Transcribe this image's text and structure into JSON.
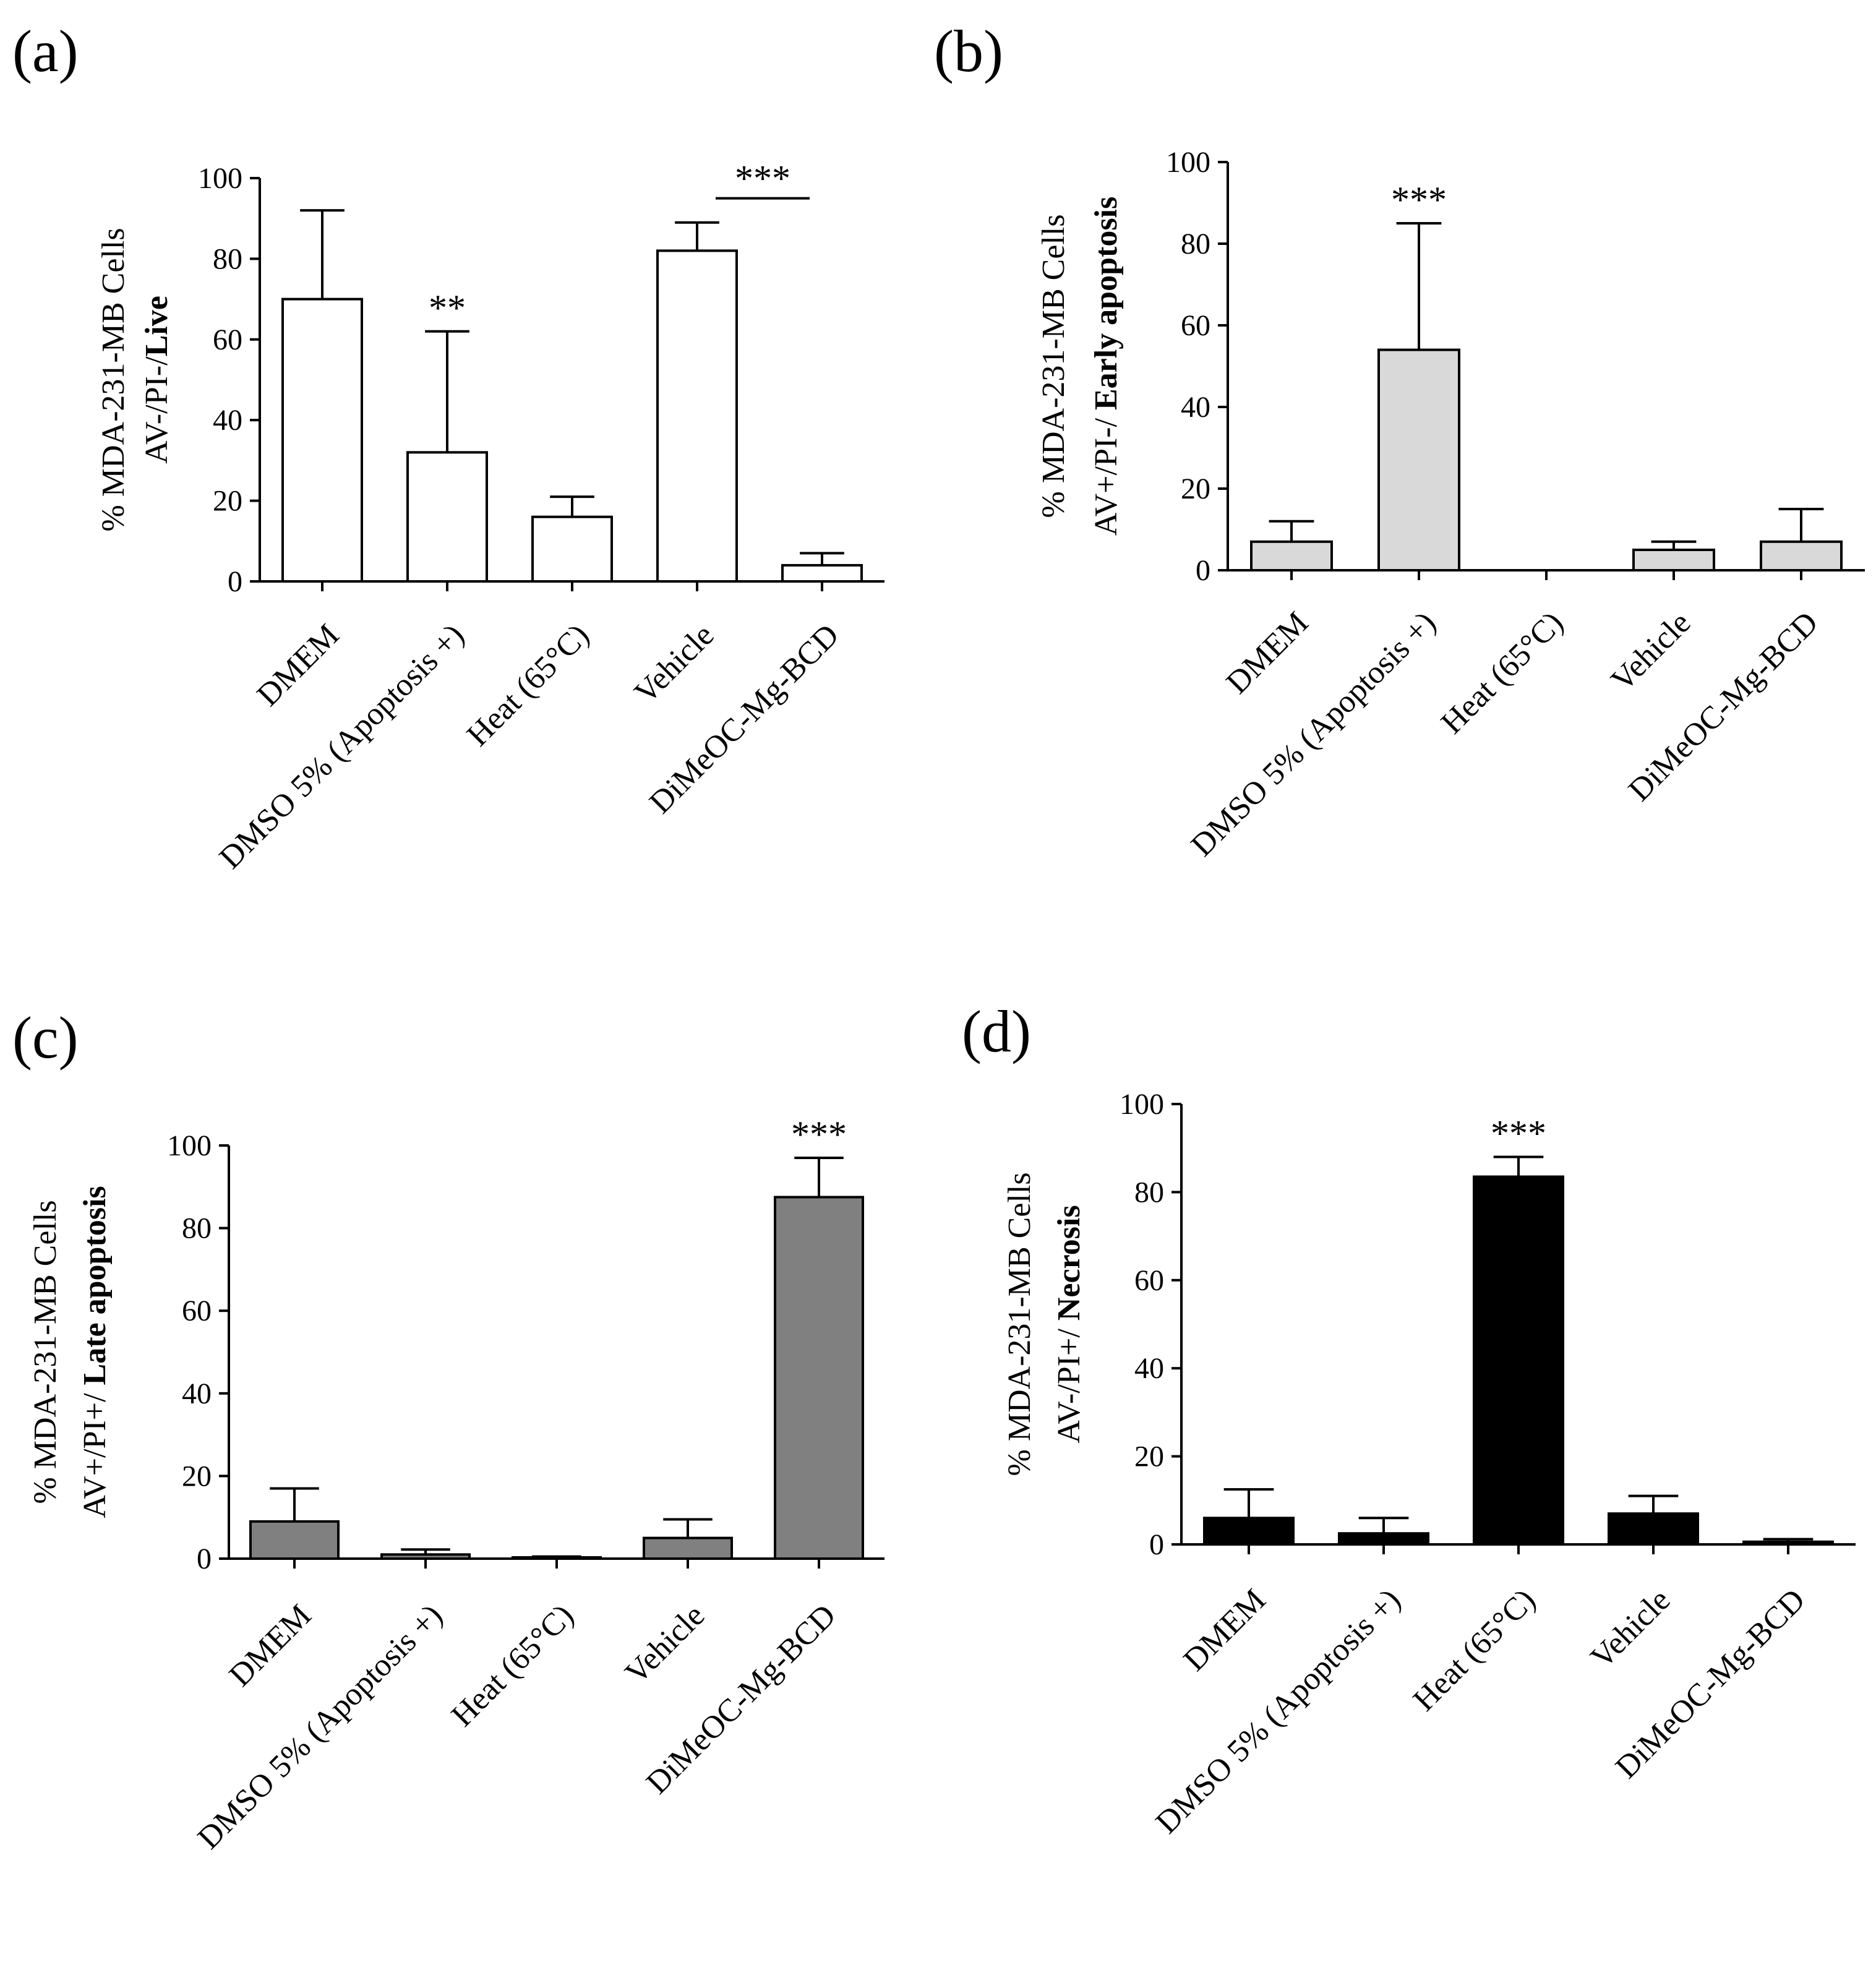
{
  "figure": {
    "background": "#ffffff",
    "axis_color": "#000000"
  },
  "chart_data": [
    {
      "panel": "(a)",
      "type": "bar",
      "title": "",
      "ylabel_line1": "% MDA-231-MB Cells",
      "ylabel_line2_prefix": "AV-/PI-/",
      "ylabel_line2_bold": "Live",
      "xlabel": "",
      "ylim": [
        0,
        100
      ],
      "yticks": [
        0,
        20,
        40,
        60,
        80,
        100
      ],
      "bar_color": "#ffffff",
      "categories": [
        "DMEM",
        "DMSO 5% (Apoptosis +)",
        "Heat (65°C)",
        "Vehicle",
        "DiMeOC-Mg-BCD"
      ],
      "values": [
        70,
        32,
        16,
        82,
        4
      ],
      "errors": [
        22,
        30,
        5,
        7,
        3
      ],
      "significance": [
        {
          "category_index": 1,
          "label": "**"
        },
        {
          "from_index": 3,
          "to_index": 4,
          "label": "***",
          "y": 95
        }
      ]
    },
    {
      "panel": "(b)",
      "type": "bar",
      "title": "",
      "ylabel_line1": "% MDA-231-MB Cells",
      "ylabel_line2_prefix": "AV+/PI-/ ",
      "ylabel_line2_bold": "Early apoptosis",
      "xlabel": "",
      "ylim": [
        0,
        100
      ],
      "yticks": [
        0,
        20,
        40,
        60,
        80,
        100
      ],
      "bar_color": "#d9d9d9",
      "categories": [
        "DMEM",
        "DMSO 5% (Apoptosis +)",
        "Heat (65°C)",
        "Vehicle",
        "DiMeOC-Mg-BCD"
      ],
      "values": [
        7,
        54,
        0,
        5,
        7
      ],
      "errors": [
        5,
        31,
        0,
        2,
        8
      ],
      "significance": [
        {
          "category_index": 1,
          "label": "***"
        }
      ]
    },
    {
      "panel": "(c)",
      "type": "bar",
      "title": "",
      "ylabel_line1": "% MDA-231-MB Cells",
      "ylabel_line2_prefix": "AV+/PI+/ ",
      "ylabel_line2_bold": "Late apoptosis",
      "xlabel": "",
      "ylim": [
        0,
        100
      ],
      "yticks": [
        0,
        20,
        40,
        60,
        80,
        100
      ],
      "bar_color": "#808080",
      "categories": [
        "DMEM",
        "DMSO 5% (Apoptosis +)",
        "Heat (65°C)",
        "Vehicle",
        "DiMeOC-Mg-BCD"
      ],
      "values": [
        9,
        1,
        0.3,
        5,
        87.5
      ],
      "errors": [
        8,
        1.2,
        0.2,
        4.5,
        9.5
      ],
      "significance": [
        {
          "category_index": 4,
          "label": "***"
        }
      ]
    },
    {
      "panel": "(d)",
      "type": "bar",
      "title": "",
      "ylabel_line1": "% MDA-231-MB Cells",
      "ylabel_line2_prefix": "AV-/PI+/ ",
      "ylabel_line2_bold": "Necrosis",
      "xlabel": "",
      "ylim": [
        0,
        100
      ],
      "yticks": [
        0,
        20,
        40,
        60,
        80,
        100
      ],
      "bar_color": "#000000",
      "categories": [
        "DMEM",
        "DMSO 5% (Apoptosis +)",
        "Heat (65°C)",
        "Vehicle",
        "DiMeOC-Mg-BCD"
      ],
      "values": [
        6,
        2.5,
        83.5,
        7,
        0.6
      ],
      "errors": [
        6.5,
        3.5,
        4.5,
        4,
        0.6
      ],
      "significance": [
        {
          "category_index": 2,
          "label": "***"
        }
      ]
    }
  ]
}
